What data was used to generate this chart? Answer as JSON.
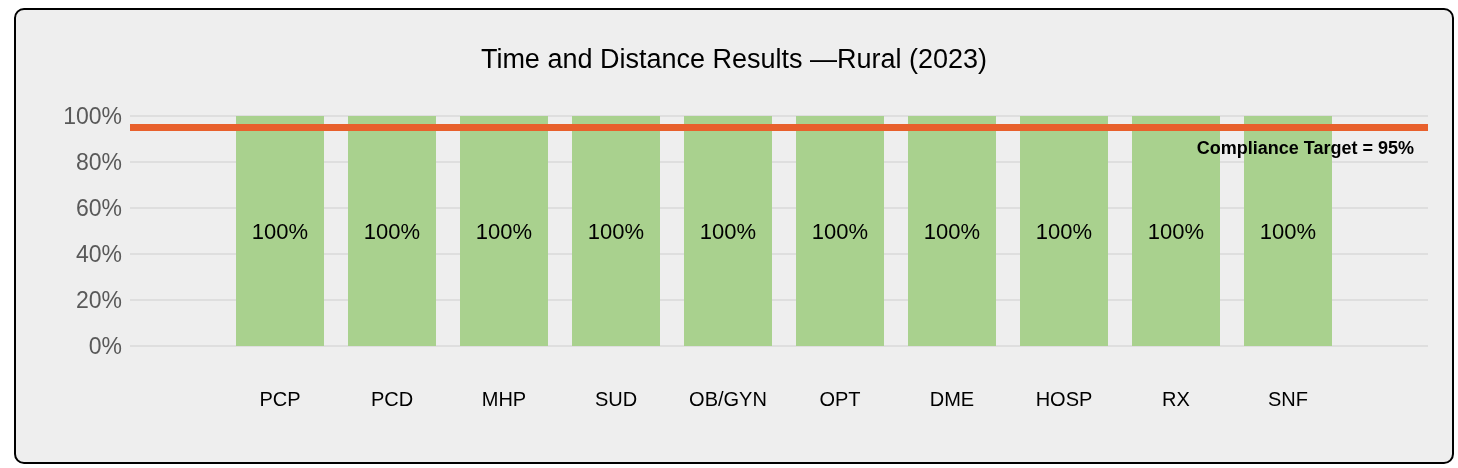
{
  "chart_data": {
    "type": "bar",
    "title": "Time and Distance Results —Rural (2023)",
    "categories": [
      "PCP",
      "PCD",
      "MHP",
      "SUD",
      "OB/GYN",
      "OPT",
      "DME",
      "HOSP",
      "RX",
      "SNF"
    ],
    "values": [
      100,
      100,
      100,
      100,
      100,
      100,
      100,
      100,
      100,
      100
    ],
    "value_labels": [
      "100%",
      "100%",
      "100%",
      "100%",
      "100%",
      "100%",
      "100%",
      "100%",
      "100%",
      "100%"
    ],
    "color": "#a9d18e",
    "ylim": [
      0,
      100
    ],
    "yticks": [
      {
        "value": 0,
        "label": "0%"
      },
      {
        "value": 20,
        "label": "20%"
      },
      {
        "value": 40,
        "label": "40%"
      },
      {
        "value": 60,
        "label": "60%"
      },
      {
        "value": 80,
        "label": "80%"
      },
      {
        "value": 100,
        "label": "100%"
      }
    ],
    "grid": "y",
    "ref_lines": [
      {
        "axis": "y",
        "value": 95,
        "label": "Compliance Target = 95%",
        "color": "#e8602c"
      }
    ]
  }
}
